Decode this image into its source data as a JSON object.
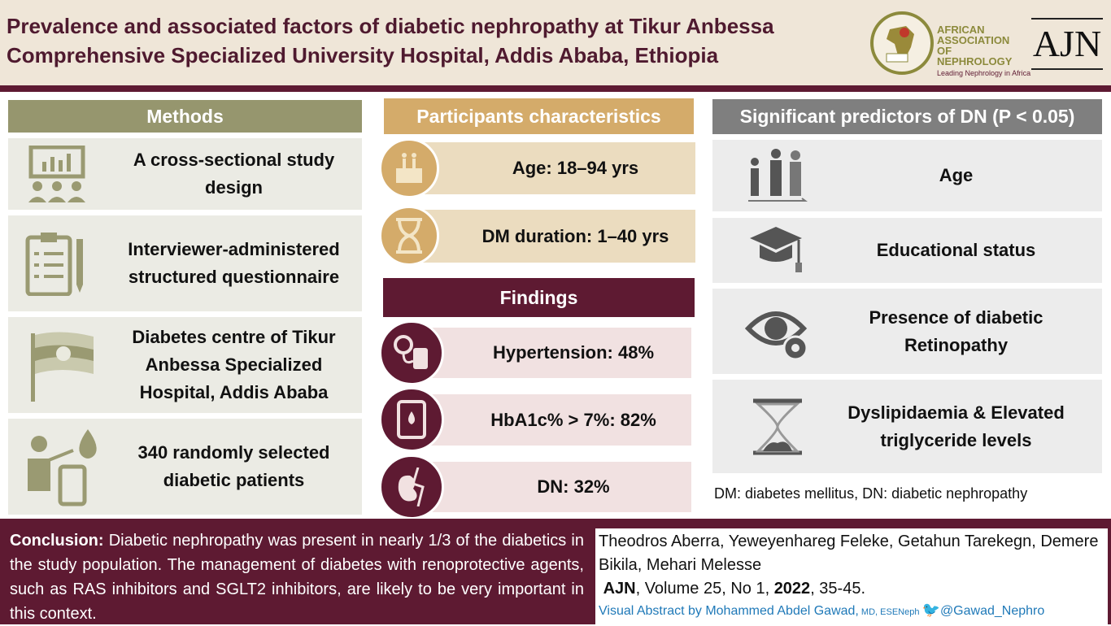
{
  "header": {
    "title": "Prevalence and associated factors of diabetic nephropathy at Tikur Anbessa Comprehensive Specialized University Hospital, Addis Ababa, Ethiopia",
    "logo_afran": {
      "name": "AFRICAN ASSOCIATION OF NEPHROLOGY",
      "tagline": "Leading Nephrology in Africa",
      "badge": "AFRAN"
    },
    "logo_ajn": "AJN"
  },
  "methods": {
    "title": "Methods",
    "items": [
      {
        "icon": "presentation-audience-icon",
        "text": "A cross-sectional study design"
      },
      {
        "icon": "clipboard-checklist-icon",
        "text": "Interviewer-administered structured questionnaire"
      },
      {
        "icon": "ethiopia-flag-icon",
        "text": "Diabetes centre of Tikur Anbessa Specialized Hospital, Addis Ababa"
      },
      {
        "icon": "doctor-glucometer-icon",
        "text": "340 randomly selected diabetic patients"
      }
    ]
  },
  "participants": {
    "title": "Participants characteristics",
    "items": [
      {
        "icon": "birthday-cake-icon",
        "text": "Age: 18–94 yrs"
      },
      {
        "icon": "hourglass-icon",
        "text": "DM duration: 1–40 yrs"
      }
    ]
  },
  "findings": {
    "title": "Findings",
    "items": [
      {
        "icon": "blood-pressure-icon",
        "text": "Hypertension: 48%"
      },
      {
        "icon": "glucometer-icon",
        "text": "HbA1c% > 7%: 82%"
      },
      {
        "icon": "kidney-icon",
        "text": "DN: 32%"
      }
    ]
  },
  "predictors": {
    "title": "Significant predictors of DN (P < 0.05)",
    "items": [
      {
        "icon": "age-people-icon",
        "text": "Age"
      },
      {
        "icon": "graduation-cap-icon",
        "text": "Educational status"
      },
      {
        "icon": "eye-gear-icon",
        "text": "Presence of diabetic Retinopathy"
      },
      {
        "icon": "lipid-flask-icon",
        "text": "Dyslipidaemia & Elevated triglyceride levels"
      }
    ],
    "footnote": "DM: diabetes mellitus, DN: diabetic nephropathy"
  },
  "conclusion": {
    "label": "Conclusion:",
    "text": " Diabetic nephropathy was present in nearly 1/3 of the diabetics in the study population. The management of diabetes with renoprotective agents, such as RAS inhibitors and SGLT2 inhibitors, are likely to be very important in this context."
  },
  "citation": {
    "authors": "Theodros Aberra, Yeweyenhareg Feleke, Getahun Tarekegn, Demere Bikila, Mehari Melesse",
    "journal": "AJN",
    "volume": ", Volume 25, No 1, ",
    "year": "2022",
    "pages": ", 35-45.",
    "credit": "Visual Abstract by Mohammed Abdel Gawad,",
    "credit_degree": " MD, ESENeph ",
    "twitter": "@Gawad_Nephro"
  },
  "colors": {
    "maroon": "#5e1a32",
    "olive": "#96966e",
    "gold": "#d4ab6a",
    "gray": "#7f7f7f"
  }
}
